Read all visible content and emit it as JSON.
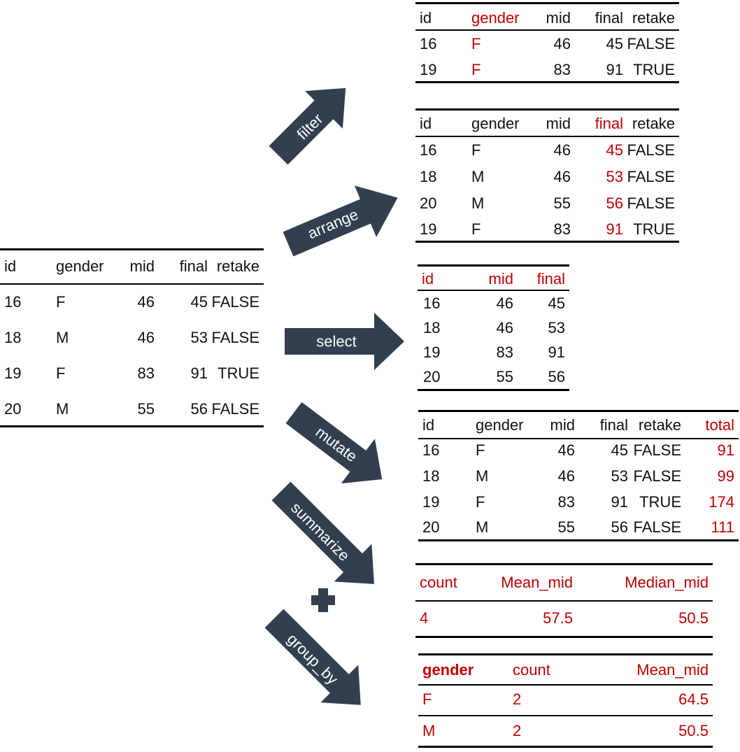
{
  "colors": {
    "arrow": "#323f4f",
    "highlight": "#c00000",
    "text": "#111111"
  },
  "source_table": {
    "headers": [
      "id",
      "gender",
      "mid",
      "final",
      "retake"
    ],
    "rows": [
      [
        "16",
        "F",
        "46",
        "45",
        "FALSE"
      ],
      [
        "18",
        "M",
        "46",
        "53",
        "FALSE"
      ],
      [
        "19",
        "F",
        "83",
        "91",
        "TRUE"
      ],
      [
        "20",
        "M",
        "55",
        "56",
        "FALSE"
      ]
    ]
  },
  "operations": {
    "filter": "filter",
    "arrange": "arrange",
    "select": "select",
    "mutate": "mutate",
    "summarize": "summarize",
    "plus": "+",
    "group_by": "group_by"
  },
  "filter_table": {
    "headers": [
      "id",
      "gender",
      "mid",
      "final",
      "retake"
    ],
    "rows": [
      [
        "16",
        "F",
        "46",
        "45",
        "FALSE"
      ],
      [
        "19",
        "F",
        "83",
        "91",
        "TRUE"
      ]
    ]
  },
  "arrange_table": {
    "headers": [
      "id",
      "gender",
      "mid",
      "final",
      "retake"
    ],
    "rows": [
      [
        "16",
        "F",
        "46",
        "45",
        "FALSE"
      ],
      [
        "18",
        "M",
        "46",
        "53",
        "FALSE"
      ],
      [
        "20",
        "M",
        "55",
        "56",
        "FALSE"
      ],
      [
        "19",
        "F",
        "83",
        "91",
        "TRUE"
      ]
    ]
  },
  "select_table": {
    "headers": [
      "id",
      "mid",
      "final"
    ],
    "rows": [
      [
        "16",
        "46",
        "45"
      ],
      [
        "18",
        "46",
        "53"
      ],
      [
        "19",
        "83",
        "91"
      ],
      [
        "20",
        "55",
        "56"
      ]
    ]
  },
  "mutate_table": {
    "headers": [
      "id",
      "gender",
      "mid",
      "final",
      "retake",
      "total"
    ],
    "rows": [
      [
        "16",
        "F",
        "46",
        "45",
        "FALSE",
        "91"
      ],
      [
        "18",
        "M",
        "46",
        "53",
        "FALSE",
        "99"
      ],
      [
        "19",
        "F",
        "83",
        "91",
        "TRUE",
        "174"
      ],
      [
        "20",
        "M",
        "55",
        "56",
        "FALSE",
        "111"
      ]
    ]
  },
  "summarize_table": {
    "headers": [
      "count",
      "Mean_mid",
      "Median_mid"
    ],
    "rows": [
      [
        "4",
        "57.5",
        "50.5"
      ]
    ]
  },
  "group_table": {
    "headers": [
      "gender",
      "count",
      "Mean_mid"
    ],
    "rows": [
      [
        "F",
        "2",
        "64.5"
      ],
      [
        "M",
        "2",
        "50.5"
      ]
    ]
  }
}
